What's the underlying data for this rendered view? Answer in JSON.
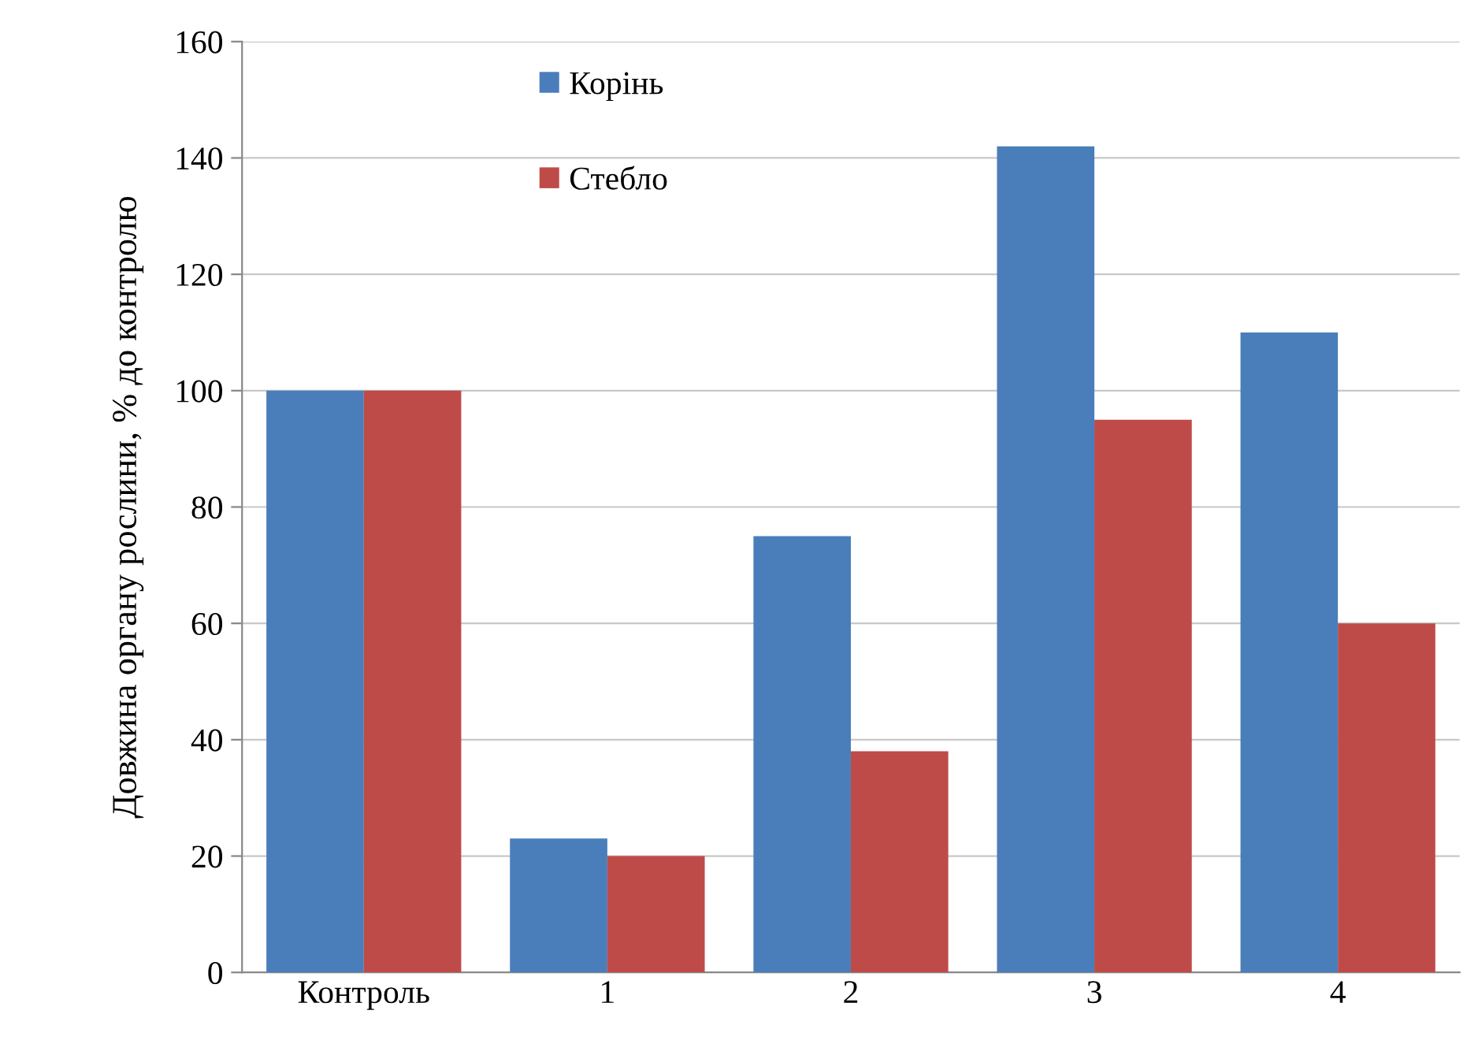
{
  "chart_data": {
    "type": "bar",
    "ylabel": "Довжина органу рослини, % до контролю",
    "categories": [
      "Контроль",
      "1",
      "2",
      "3",
      "4"
    ],
    "series": [
      {
        "name": "Корінь",
        "color": "#4a7ebb",
        "values": [
          100,
          23,
          75,
          142,
          110
        ]
      },
      {
        "name": "Стебло",
        "color": "#be4b48",
        "values": [
          100,
          20,
          38,
          95,
          60
        ]
      }
    ],
    "ylim": [
      0,
      160
    ],
    "yticks": [
      0,
      20,
      40,
      60,
      80,
      100,
      120,
      140,
      160
    ],
    "grid": "y",
    "legend": "top left"
  }
}
